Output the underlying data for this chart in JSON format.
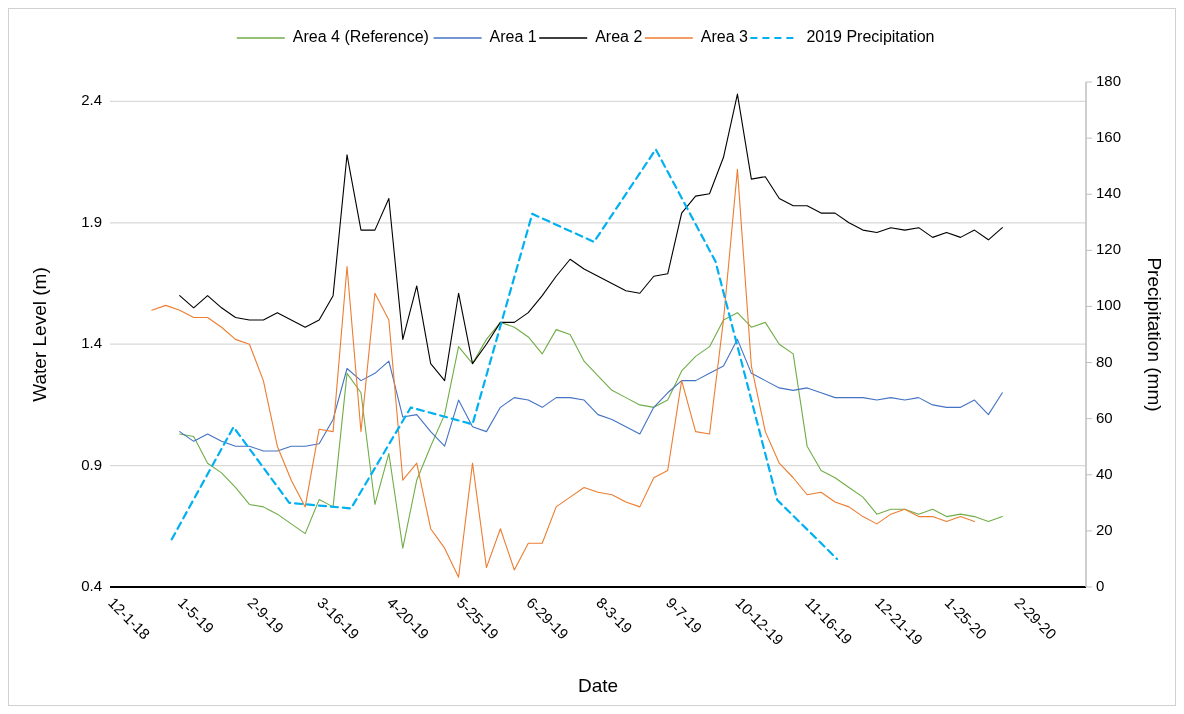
{
  "chart_data": {
    "type": "line",
    "xlabel": "Date",
    "ylabel": "Water Level (m)",
    "y2label": "Precipitation (mm)",
    "x": [
      "2018-12-22",
      "2018-12-29",
      "2019-01-05",
      "2019-01-12",
      "2019-01-19",
      "2019-01-26",
      "2019-02-02",
      "2019-02-09",
      "2019-02-16",
      "2019-02-23",
      "2019-03-02",
      "2019-03-09",
      "2019-03-16",
      "2019-03-23",
      "2019-03-30",
      "2019-04-06",
      "2019-04-13",
      "2019-04-20",
      "2019-04-27",
      "2019-05-04",
      "2019-05-11",
      "2019-05-18",
      "2019-05-25",
      "2019-06-01",
      "2019-06-08",
      "2019-06-15",
      "2019-06-22",
      "2019-06-29",
      "2019-07-06",
      "2019-07-13",
      "2019-07-20",
      "2019-07-27",
      "2019-08-03",
      "2019-08-10",
      "2019-08-17",
      "2019-08-24",
      "2019-08-31",
      "2019-09-07",
      "2019-09-14",
      "2019-09-21",
      "2019-09-28",
      "2019-10-05",
      "2019-10-12",
      "2019-10-19",
      "2019-10-26",
      "2019-11-02",
      "2019-11-09",
      "2019-11-16",
      "2019-11-23",
      "2019-11-30",
      "2019-12-07",
      "2019-12-14",
      "2019-12-21",
      "2019-12-28",
      "2020-01-04",
      "2020-01-11",
      "2020-01-18",
      "2020-01-25",
      "2020-02-01",
      "2020-02-08",
      "2020-02-15",
      "2020-02-22"
    ],
    "series": [
      {
        "name": "Area 4 (Reference)",
        "color": "#70ad47",
        "values": [
          null,
          null,
          1.03,
          1.02,
          0.91,
          0.87,
          0.81,
          0.74,
          0.73,
          0.7,
          0.66,
          0.62,
          0.76,
          0.73,
          1.28,
          1.2,
          0.74,
          0.95,
          0.56,
          0.84,
          0.98,
          1.11,
          1.39,
          1.32,
          1.42,
          1.49,
          1.47,
          1.43,
          1.36,
          1.46,
          1.44,
          1.33,
          1.27,
          1.21,
          1.18,
          1.15,
          1.14,
          1.17,
          1.29,
          1.35,
          1.39,
          1.5,
          1.53,
          1.47,
          1.49,
          1.4,
          1.36,
          0.98,
          0.88,
          0.85,
          0.81,
          0.77,
          0.7,
          0.72,
          0.72,
          0.7,
          0.72,
          0.69,
          0.7,
          0.69,
          0.67,
          0.69
        ]
      },
      {
        "name": "Area 1",
        "color": "#4472c4",
        "values": [
          null,
          null,
          1.04,
          1.0,
          1.03,
          1.0,
          0.98,
          0.98,
          0.96,
          0.96,
          0.98,
          0.98,
          0.99,
          1.09,
          1.3,
          1.25,
          1.28,
          1.33,
          1.1,
          1.11,
          1.04,
          0.98,
          1.17,
          1.06,
          1.04,
          1.14,
          1.18,
          1.17,
          1.14,
          1.18,
          1.18,
          1.17,
          1.11,
          1.09,
          1.06,
          1.03,
          1.14,
          1.2,
          1.25,
          1.25,
          1.28,
          1.31,
          1.42,
          1.28,
          1.25,
          1.22,
          1.21,
          1.22,
          1.2,
          1.18,
          1.18,
          1.18,
          1.17,
          1.18,
          1.17,
          1.18,
          1.15,
          1.14,
          1.14,
          1.17,
          1.11,
          1.2
        ]
      },
      {
        "name": "Area 2",
        "color": "#000000",
        "values": [
          null,
          null,
          1.6,
          1.55,
          1.6,
          1.55,
          1.51,
          1.5,
          1.5,
          1.53,
          1.5,
          1.47,
          1.5,
          1.6,
          2.18,
          1.87,
          1.87,
          2.0,
          1.42,
          1.64,
          1.32,
          1.25,
          1.61,
          1.32,
          1.4,
          1.49,
          1.49,
          1.53,
          1.6,
          1.68,
          1.75,
          1.71,
          1.68,
          1.65,
          1.62,
          1.61,
          1.68,
          1.69,
          1.94,
          2.01,
          2.02,
          2.17,
          2.43,
          2.08,
          2.09,
          2.0,
          1.97,
          1.97,
          1.94,
          1.94,
          1.9,
          1.87,
          1.86,
          1.88,
          1.87,
          1.88,
          1.84,
          1.86,
          1.84,
          1.87,
          1.83,
          1.88
        ]
      },
      {
        "name": "Area 3",
        "color": "#ed7d31",
        "values": [
          1.54,
          1.56,
          1.54,
          1.51,
          1.51,
          1.47,
          1.42,
          1.4,
          1.25,
          0.98,
          0.84,
          0.73,
          1.05,
          1.04,
          1.72,
          1.04,
          1.61,
          1.5,
          0.84,
          0.91,
          0.64,
          0.56,
          0.44,
          0.91,
          0.48,
          0.64,
          0.47,
          0.58,
          0.58,
          0.73,
          0.77,
          0.81,
          0.79,
          0.78,
          0.75,
          0.73,
          0.85,
          0.88,
          1.25,
          1.04,
          1.03,
          1.5,
          2.12,
          1.31,
          1.04,
          0.91,
          0.85,
          0.78,
          0.79,
          0.75,
          0.73,
          0.69,
          0.66,
          0.7,
          0.72,
          0.69,
          0.69,
          0.67,
          0.69,
          0.67,
          null,
          null
        ]
      },
      {
        "name": "2019 Precipitation",
        "color": "#00b0f0",
        "axis": "y2",
        "line_style": "dashed",
        "x": [
          "2019-01-01",
          "2019-02-01",
          "2019-03-01",
          "2019-04-01",
          "2019-05-01",
          "2019-06-01",
          "2019-07-01",
          "2019-08-01",
          "2019-09-01",
          "2019-10-01",
          "2019-11-01",
          "2019-12-01"
        ],
        "values": [
          17,
          57,
          30,
          28,
          64,
          58,
          133,
          123,
          156,
          116,
          31,
          10
        ]
      }
    ],
    "xlim": [
      "2018-12-01",
      "2020-04-04"
    ],
    "xticks": [
      {
        "value": "2018-12-01",
        "label": "12-1-18"
      },
      {
        "value": "2019-01-05",
        "label": "1-5-19"
      },
      {
        "value": "2019-02-09",
        "label": "2-9-19"
      },
      {
        "value": "2019-03-16",
        "label": "3-16-19"
      },
      {
        "value": "2019-04-20",
        "label": "4-20-19"
      },
      {
        "value": "2019-05-25",
        "label": "5-25-19"
      },
      {
        "value": "2019-06-29",
        "label": "6-29-19"
      },
      {
        "value": "2019-08-03",
        "label": "8-3-19"
      },
      {
        "value": "2019-09-07",
        "label": "9-7-19"
      },
      {
        "value": "2019-10-12",
        "label": "10-12-19"
      },
      {
        "value": "2019-11-16",
        "label": "11-16-19"
      },
      {
        "value": "2019-12-21",
        "label": "12-21-19"
      },
      {
        "value": "2020-01-25",
        "label": "1-25-20"
      },
      {
        "value": "2020-02-29",
        "label": "2-29-20"
      }
    ],
    "ylim": [
      0.4,
      2.48
    ],
    "yticks": [
      0.4,
      0.9,
      1.4,
      1.9,
      2.4
    ],
    "y2lim": [
      0,
      180
    ],
    "y2ticks": [
      0,
      20,
      40,
      60,
      80,
      100,
      120,
      140,
      160,
      180
    ],
    "grid": "y",
    "legend": "top",
    "marker": "none",
    "line_style": "solid"
  }
}
